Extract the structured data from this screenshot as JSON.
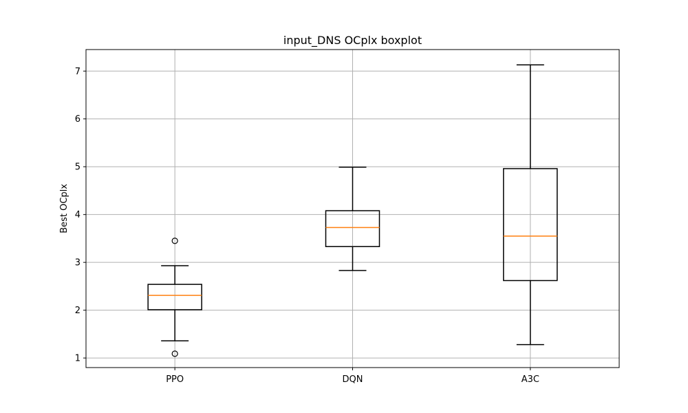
{
  "chart_data": {
    "type": "boxplot",
    "title": "input_DNS OCplx boxplot",
    "xlabel": "",
    "ylabel": "Best OCplx",
    "ylim": [
      0.8,
      7.45
    ],
    "yticks": [
      1,
      2,
      3,
      4,
      5,
      6,
      7
    ],
    "grid": true,
    "categories": [
      "PPO",
      "DQN",
      "A3C"
    ],
    "boxes": [
      {
        "category": "PPO",
        "whisker_low": 1.36,
        "q1": 2.01,
        "median": 2.31,
        "q3": 2.54,
        "whisker_high": 2.93,
        "outliers": [
          3.45,
          1.09
        ]
      },
      {
        "category": "DQN",
        "whisker_low": 2.83,
        "q1": 3.33,
        "median": 3.73,
        "q3": 4.08,
        "whisker_high": 4.99,
        "outliers": []
      },
      {
        "category": "A3C",
        "whisker_low": 1.28,
        "q1": 2.62,
        "median": 3.55,
        "q3": 4.96,
        "whisker_high": 7.13,
        "outliers": []
      }
    ],
    "colors": {
      "box": "#000000",
      "median": "#ff7f0e",
      "grid": "#b0b0b0"
    }
  }
}
